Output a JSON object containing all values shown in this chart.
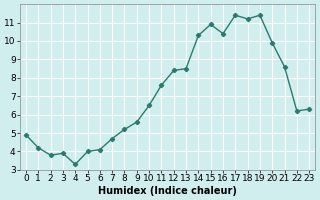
{
  "x": [
    0,
    1,
    2,
    3,
    4,
    5,
    6,
    7,
    8,
    9,
    10,
    11,
    12,
    13,
    14,
    15,
    16,
    17,
    18,
    19,
    20,
    21,
    22,
    23
  ],
  "y": [
    4.9,
    4.2,
    3.8,
    3.9,
    3.3,
    4.0,
    4.1,
    4.7,
    5.2,
    5.6,
    6.5,
    7.6,
    8.4,
    8.5,
    10.3,
    10.9,
    10.4,
    11.4,
    11.2,
    11.4,
    9.9,
    8.6,
    6.2,
    6.3
  ],
  "line_color": "#2a7a6e",
  "marker_color": "#2a7a6e",
  "bg_color": "#d0eeee",
  "grid_color": "#ffffff",
  "xlabel": "Humidex (Indice chaleur)",
  "ylim": [
    3,
    12
  ],
  "xlim": [
    -0.5,
    23.5
  ],
  "yticks": [
    3,
    4,
    5,
    6,
    7,
    8,
    9,
    10,
    11
  ],
  "xtick_labels": [
    "0",
    "1",
    "2",
    "3",
    "4",
    "5",
    "6",
    "7",
    "8",
    "9",
    "10",
    "11",
    "12",
    "13",
    "14",
    "15",
    "16",
    "17",
    "18",
    "19",
    "20",
    "21",
    "22",
    "23"
  ],
  "axis_fontsize": 7,
  "tick_fontsize": 6.5
}
